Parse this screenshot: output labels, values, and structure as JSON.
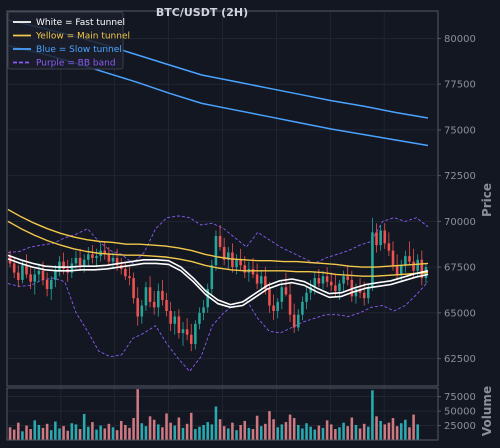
{
  "chart_data": {
    "type": "candlestick",
    "title": "BTC/USDT (2H)",
    "price_axis": {
      "label": "Price",
      "ticks": [
        62500,
        65000,
        67500,
        70000,
        72500,
        75000,
        77500,
        80000
      ],
      "range": [
        61000,
        81500
      ],
      "position": "right"
    },
    "volume_axis": {
      "label": "Volume",
      "ticks": [
        25000,
        50000,
        75000
      ],
      "range": [
        0,
        90000
      ],
      "position": "right"
    },
    "legend": {
      "placement": "top-left",
      "entries": [
        {
          "label": "White = Fast tunnel",
          "color": "#ffffff",
          "style": "solid"
        },
        {
          "label": "Yellow = Main tunnel",
          "color": "#f3c84a",
          "style": "solid"
        },
        {
          "label": "Blue = Slow tunnel",
          "color": "#4aa3ff",
          "style": "solid"
        },
        {
          "label": "Purple = BB band",
          "color": "#8b5cf6",
          "style": "dashed"
        }
      ]
    },
    "colors": {
      "up": "#26a69a",
      "down": "#ef5350",
      "background": "#131722",
      "grid": "#2a2e39"
    },
    "grid": true,
    "candles": [
      [
        68100,
        68400,
        67500,
        67700
      ],
      [
        67700,
        68000,
        66900,
        67200
      ],
      [
        67200,
        67600,
        66400,
        66800
      ],
      [
        66800,
        67900,
        66600,
        67600
      ],
      [
        67600,
        68200,
        66900,
        67100
      ],
      [
        67100,
        67500,
        66300,
        66700
      ],
      [
        66700,
        67400,
        66000,
        67100
      ],
      [
        67100,
        67700,
        66700,
        67300
      ],
      [
        67300,
        67800,
        66500,
        66800
      ],
      [
        66800,
        67200,
        65900,
        66300
      ],
      [
        66300,
        67000,
        65700,
        66800
      ],
      [
        66800,
        67600,
        66400,
        67300
      ],
      [
        67300,
        68100,
        67000,
        67800
      ],
      [
        67800,
        68300,
        67100,
        67400
      ],
      [
        67400,
        67900,
        66700,
        67200
      ],
      [
        67200,
        68000,
        66900,
        67700
      ],
      [
        67700,
        68400,
        67400,
        68000
      ],
      [
        68000,
        68500,
        67300,
        67600
      ],
      [
        67600,
        68200,
        67200,
        67900
      ],
      [
        67900,
        68600,
        67600,
        68200
      ],
      [
        68200,
        68700,
        67700,
        68000
      ],
      [
        68000,
        68500,
        67500,
        68100
      ],
      [
        68100,
        68800,
        67800,
        68400
      ],
      [
        68400,
        68900,
        67900,
        68200
      ],
      [
        68200,
        68600,
        67600,
        67800
      ],
      [
        67800,
        68300,
        67400,
        68000
      ],
      [
        68000,
        68500,
        67300,
        67600
      ],
      [
        67600,
        68000,
        67100,
        67400
      ],
      [
        67400,
        67800,
        66800,
        67000
      ],
      [
        67000,
        67500,
        66500,
        66900
      ],
      [
        66900,
        67200,
        65500,
        65800
      ],
      [
        65800,
        66400,
        64300,
        64800
      ],
      [
        64800,
        65700,
        64400,
        65400
      ],
      [
        65400,
        66700,
        65100,
        66400
      ],
      [
        66400,
        67000,
        65300,
        65600
      ],
      [
        65600,
        66200,
        64900,
        65300
      ],
      [
        65300,
        66600,
        64800,
        66200
      ],
      [
        66200,
        66800,
        65400,
        65700
      ],
      [
        65700,
        66100,
        64800,
        65100
      ],
      [
        65100,
        65600,
        64000,
        64400
      ],
      [
        64400,
        65100,
        63800,
        64800
      ],
      [
        64800,
        65200,
        63600,
        63900
      ],
      [
        63900,
        64500,
        63200,
        64100
      ],
      [
        64100,
        64700,
        63500,
        63800
      ],
      [
        63800,
        64400,
        62900,
        63300
      ],
      [
        63300,
        64600,
        63000,
        64400
      ],
      [
        64400,
        65300,
        64100,
        65000
      ],
      [
        65000,
        65700,
        64600,
        65300
      ],
      [
        65300,
        66600,
        65000,
        66300
      ],
      [
        66300,
        67900,
        66000,
        67600
      ],
      [
        67600,
        69500,
        67300,
        69200
      ],
      [
        69200,
        69800,
        68400,
        68600
      ],
      [
        68600,
        69100,
        67600,
        67900
      ],
      [
        67900,
        68600,
        67400,
        68300
      ],
      [
        68300,
        68800,
        67200,
        67500
      ],
      [
        67500,
        68200,
        67100,
        67900
      ],
      [
        67900,
        68500,
        67300,
        67600
      ],
      [
        67600,
        68100,
        66900,
        67200
      ],
      [
        67200,
        67800,
        66700,
        67400
      ],
      [
        67400,
        68000,
        66900,
        67100
      ],
      [
        67100,
        67700,
        66300,
        66600
      ],
      [
        66600,
        67300,
        66200,
        67000
      ],
      [
        67000,
        67500,
        66000,
        66300
      ],
      [
        66300,
        66700,
        65000,
        65400
      ],
      [
        65400,
        66000,
        64600,
        65100
      ],
      [
        65100,
        65800,
        64700,
        65600
      ],
      [
        65600,
        66700,
        65200,
        66400
      ],
      [
        66400,
        67200,
        65900,
        66000
      ],
      [
        66000,
        66600,
        64500,
        64900
      ],
      [
        64900,
        65500,
        63900,
        64200
      ],
      [
        64200,
        65200,
        64000,
        64900
      ],
      [
        64900,
        65900,
        64600,
        65600
      ],
      [
        65600,
        66400,
        65200,
        66100
      ],
      [
        66100,
        66800,
        65700,
        66400
      ],
      [
        66400,
        67200,
        66000,
        66900
      ],
      [
        66900,
        67400,
        66400,
        66600
      ],
      [
        66600,
        67300,
        66300,
        67000
      ],
      [
        67000,
        67500,
        66400,
        66700
      ],
      [
        66700,
        67200,
        66200,
        66500
      ],
      [
        66500,
        67100,
        65900,
        66200
      ],
      [
        66200,
        66800,
        65700,
        66600
      ],
      [
        66600,
        67300,
        66200,
        67000
      ],
      [
        67000,
        67600,
        66500,
        66800
      ],
      [
        66800,
        67300,
        65600,
        65900
      ],
      [
        65900,
        66600,
        65500,
        66300
      ],
      [
        66300,
        66900,
        65800,
        66100
      ],
      [
        66100,
        66700,
        65400,
        65800
      ],
      [
        65800,
        66600,
        65500,
        66400
      ],
      [
        66400,
        70200,
        66200,
        69400
      ],
      [
        69400,
        69900,
        68300,
        68700
      ],
      [
        68700,
        69800,
        68400,
        69500
      ],
      [
        69500,
        69900,
        68500,
        68800
      ],
      [
        68800,
        69400,
        68100,
        68400
      ],
      [
        68400,
        68900,
        67300,
        67600
      ],
      [
        67600,
        68200,
        66800,
        67100
      ],
      [
        67100,
        67900,
        66700,
        67600
      ],
      [
        67600,
        68400,
        67200,
        68100
      ],
      [
        68100,
        68900,
        67600,
        67800
      ],
      [
        67800,
        68500,
        66900,
        67300
      ],
      [
        67300,
        68200,
        67000,
        67900
      ],
      [
        67900,
        68400,
        66500,
        66900
      ],
      [
        66900,
        67700,
        66600,
        67500
      ]
    ],
    "volumes": [
      22000,
      18000,
      30000,
      15000,
      25000,
      19000,
      34000,
      26000,
      21000,
      28000,
      17000,
      32000,
      20000,
      24000,
      16000,
      29000,
      27000,
      19000,
      45000,
      23000,
      31000,
      18000,
      25000,
      20000,
      28000,
      22000,
      17000,
      33000,
      26000,
      21000,
      38000,
      88000,
      29000,
      24000,
      41000,
      35000,
      27000,
      22000,
      46000,
      30000,
      25000,
      39000,
      21000,
      28000,
      47000,
      19000,
      23000,
      26000,
      31000,
      27000,
      58000,
      36000,
      24000,
      20000,
      30000,
      17000,
      26000,
      33000,
      21000,
      19000,
      42000,
      24000,
      28000,
      50000,
      36000,
      22000,
      27000,
      31000,
      44000,
      38000,
      26000,
      20000,
      29000,
      23000,
      18000,
      25000,
      21000,
      34000,
      27000,
      19000,
      22000,
      30000,
      24000,
      39000,
      26000,
      20000,
      28000,
      23000,
      86000,
      41000,
      33000,
      27000,
      30000,
      38000,
      24000,
      29000,
      35000,
      22000,
      44000,
      27000
    ],
    "fast_tunnel": [
      [
        67950,
        68150
      ],
      [
        67700,
        67900
      ],
      [
        67500,
        67700
      ],
      [
        67350,
        67550
      ],
      [
        67300,
        67500
      ],
      [
        67300,
        67500
      ],
      [
        67350,
        67550
      ],
      [
        67350,
        67550
      ],
      [
        67400,
        67600
      ],
      [
        67500,
        67700
      ],
      [
        67600,
        67800
      ],
      [
        67700,
        67900
      ],
      [
        67700,
        67900
      ],
      [
        67650,
        67850
      ],
      [
        67300,
        67500
      ],
      [
        66700,
        66900
      ],
      [
        66000,
        66200
      ],
      [
        65500,
        65700
      ],
      [
        65300,
        65450
      ],
      [
        65400,
        65600
      ],
      [
        65850,
        66050
      ],
      [
        66300,
        66500
      ],
      [
        66550,
        66750
      ],
      [
        66650,
        66850
      ],
      [
        66500,
        66700
      ],
      [
        66150,
        66350
      ],
      [
        65850,
        66050
      ],
      [
        65900,
        66100
      ],
      [
        66150,
        66350
      ],
      [
        66350,
        66550
      ],
      [
        66450,
        66650
      ],
      [
        66550,
        66750
      ],
      [
        66750,
        66950
      ],
      [
        66950,
        67150
      ],
      [
        67100,
        67300
      ]
    ],
    "main_tunnel": [
      [
        70000,
        70650
      ],
      [
        69600,
        70250
      ],
      [
        69250,
        69900
      ],
      [
        68950,
        69600
      ],
      [
        68700,
        69350
      ],
      [
        68500,
        69150
      ],
      [
        68350,
        69000
      ],
      [
        68250,
        68900
      ],
      [
        68200,
        68850
      ],
      [
        68150,
        68750
      ],
      [
        68150,
        68750
      ],
      [
        68100,
        68700
      ],
      [
        68050,
        68650
      ],
      [
        67950,
        68550
      ],
      [
        67800,
        68400
      ],
      [
        67600,
        68200
      ],
      [
        67450,
        68050
      ],
      [
        67350,
        67950
      ],
      [
        67300,
        67900
      ],
      [
        67300,
        67850
      ],
      [
        67300,
        67850
      ],
      [
        67300,
        67800
      ],
      [
        67250,
        67800
      ],
      [
        67250,
        67750
      ],
      [
        67200,
        67700
      ],
      [
        67100,
        67650
      ],
      [
        67050,
        67550
      ],
      [
        67000,
        67500
      ],
      [
        67000,
        67500
      ],
      [
        67050,
        67550
      ],
      [
        67100,
        67600
      ],
      [
        67150,
        67650
      ],
      [
        67200,
        67700
      ]
    ],
    "slow_tunnel": [
      [
        79600,
        81000
      ],
      [
        79200,
        80600
      ],
      [
        78700,
        80150
      ],
      [
        78150,
        79650
      ],
      [
        77600,
        79100
      ],
      [
        77000,
        78550
      ],
      [
        76450,
        78000
      ],
      [
        76100,
        77650
      ],
      [
        75750,
        77300
      ],
      [
        75400,
        76950
      ],
      [
        75050,
        76600
      ],
      [
        74750,
        76300
      ],
      [
        74450,
        75950
      ],
      [
        74150,
        75650
      ]
    ],
    "bb_band": [
      [
        68300,
        66600
      ],
      [
        68350,
        66450
      ],
      [
        68600,
        66500
      ],
      [
        68700,
        66800
      ],
      [
        68800,
        66900
      ],
      [
        69100,
        66700
      ],
      [
        69300,
        65000
      ],
      [
        69600,
        64000
      ],
      [
        68900,
        62900
      ],
      [
        68400,
        62600
      ],
      [
        68200,
        62700
      ],
      [
        67700,
        63600
      ],
      [
        68300,
        63900
      ],
      [
        69600,
        64300
      ],
      [
        70200,
        63300
      ],
      [
        70300,
        62500
      ],
      [
        70200,
        61800
      ],
      [
        69800,
        62600
      ],
      [
        69900,
        64300
      ],
      [
        69600,
        65000
      ],
      [
        69100,
        65500
      ],
      [
        68600,
        65700
      ],
      [
        69400,
        64700
      ],
      [
        69000,
        64000
      ],
      [
        68600,
        63900
      ],
      [
        68300,
        64200
      ],
      [
        68000,
        64500
      ],
      [
        67700,
        64700
      ],
      [
        68000,
        64900
      ],
      [
        68200,
        64900
      ],
      [
        68400,
        64800
      ],
      [
        68700,
        65000
      ],
      [
        68900,
        65300
      ],
      [
        70000,
        65400
      ],
      [
        70200,
        65100
      ],
      [
        70000,
        65400
      ],
      [
        70200,
        66000
      ],
      [
        69700,
        66700
      ]
    ]
  }
}
